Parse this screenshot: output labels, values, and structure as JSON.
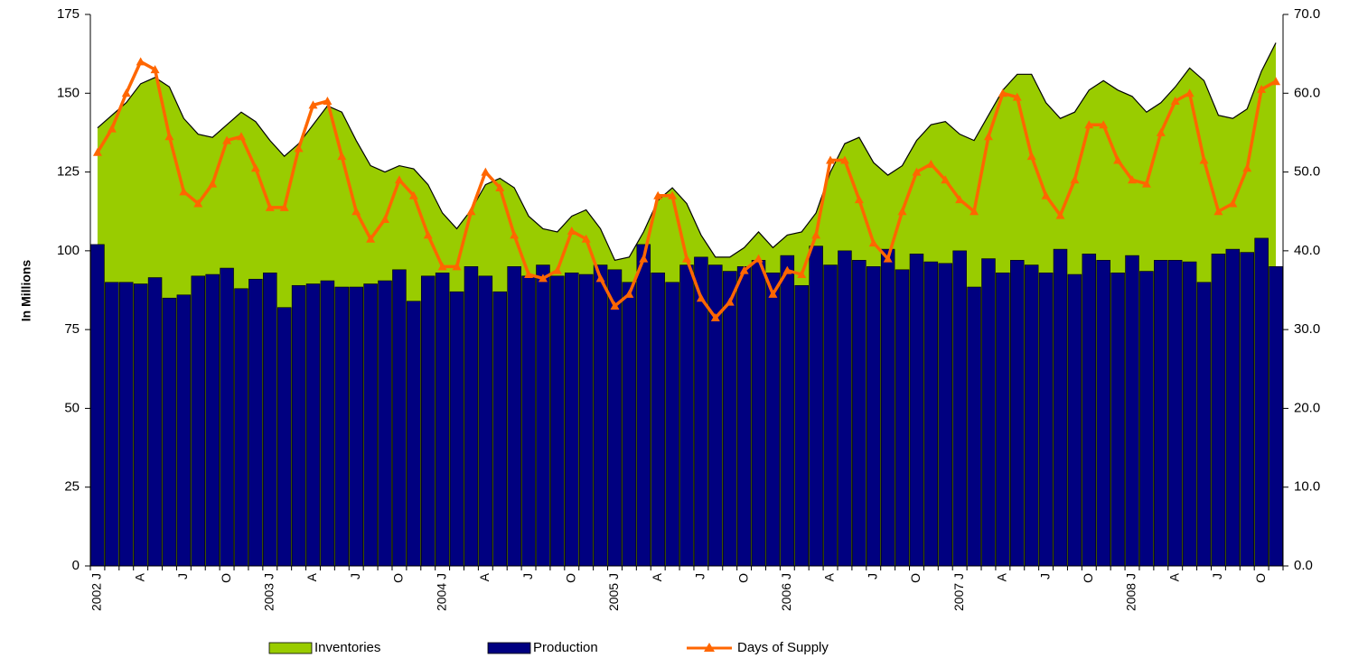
{
  "chart_data": {
    "type": "combo",
    "y_label": "In Millions",
    "categories": [
      "2002 J",
      null,
      null,
      "A",
      null,
      null,
      "J",
      null,
      null,
      "O",
      null,
      null,
      "2003 J",
      null,
      null,
      "A",
      null,
      null,
      "J",
      null,
      null,
      "O",
      null,
      null,
      "2004 J",
      null,
      null,
      "A",
      null,
      null,
      "J",
      null,
      null,
      "O",
      null,
      null,
      "2005 J",
      null,
      null,
      "A",
      null,
      null,
      "J",
      null,
      null,
      "O",
      null,
      null,
      "2006 J",
      null,
      null,
      "A",
      null,
      null,
      "J",
      null,
      null,
      "O",
      null,
      null,
      "2007 J",
      null,
      null,
      "A",
      null,
      null,
      "J",
      null,
      null,
      "O",
      null,
      null,
      "2008 J",
      null,
      null,
      "A",
      null,
      null,
      "J",
      null,
      null,
      "O",
      null
    ],
    "series": [
      {
        "name": "Inventories",
        "type": "area",
        "color": "#99cc00",
        "values": [
          139,
          143,
          147,
          153,
          155,
          152,
          142,
          137,
          136,
          140,
          144,
          141,
          135,
          130,
          134,
          140,
          146,
          144,
          135,
          127,
          125,
          127,
          126,
          121,
          112,
          107,
          113,
          121,
          123,
          120,
          111,
          107,
          106,
          111,
          113,
          107,
          97,
          98,
          106,
          116,
          120,
          115,
          105,
          98,
          98,
          101,
          106,
          101,
          105,
          106,
          112,
          125,
          134,
          136,
          128,
          124,
          127,
          135,
          140,
          141,
          137,
          135,
          143,
          151,
          156,
          156,
          147,
          142,
          144,
          151,
          154,
          151,
          149,
          144,
          147,
          152,
          158,
          154,
          143,
          142,
          145,
          157,
          166
        ]
      },
      {
        "name": "Production",
        "type": "bar",
        "color": "#000080",
        "values": [
          102,
          90,
          90,
          89.5,
          91.5,
          85,
          86,
          92,
          92.5,
          94.5,
          88,
          91,
          93,
          82,
          89,
          89.5,
          90.5,
          88.5,
          88.5,
          89.5,
          90.5,
          94,
          84,
          92,
          93,
          87,
          95,
          92,
          87,
          95,
          92,
          95.5,
          92,
          93,
          92.5,
          95.5,
          94,
          90,
          102,
          93,
          90,
          95.5,
          98,
          95.5,
          93.5,
          95,
          97,
          93,
          98.5,
          89,
          101.5,
          95.5,
          100,
          97,
          95,
          100.5,
          94,
          99,
          96.5,
          96,
          100,
          88.5,
          97.5,
          93,
          97,
          95.5,
          93,
          100.5,
          92.5,
          99,
          97,
          93,
          98.5,
          93.5,
          97,
          97,
          96.5,
          90,
          99,
          100.5,
          99.5,
          104,
          95
        ]
      },
      {
        "name": "Days of Supply",
        "type": "line",
        "axis": "y2",
        "color": "#ff6600",
        "values": [
          52.5,
          55.5,
          60,
          64,
          63,
          54.5,
          47.5,
          46,
          48.5,
          54,
          54.5,
          50.5,
          45.5,
          45.5,
          53,
          58.5,
          59,
          52,
          45,
          41.5,
          44,
          49,
          47,
          42,
          38,
          38,
          45,
          50,
          48,
          42,
          37,
          36.5,
          37.5,
          42.5,
          41.5,
          36.5,
          33,
          34.5,
          39,
          47,
          47,
          39,
          34,
          31.5,
          33.5,
          37.5,
          39,
          34.5,
          37.5,
          37,
          42,
          51.5,
          51.5,
          46.5,
          41,
          39,
          45,
          50,
          51,
          49,
          46.5,
          45,
          54.5,
          60,
          59.5,
          52,
          47,
          44.5,
          49,
          56,
          56,
          51.5,
          49,
          48.5,
          55,
          59,
          60,
          51.5,
          45,
          46,
          50.5,
          60.5,
          61.5
        ]
      }
    ],
    "ylim": [
      0,
      175
    ],
    "yticks": [
      0,
      25,
      50,
      75,
      100,
      125,
      150,
      175
    ],
    "y2lim": [
      0,
      70
    ],
    "y2ticks": [
      {
        "value": 0,
        "label": "0.0"
      },
      {
        "value": 10,
        "label": "10.0"
      },
      {
        "value": 20,
        "label": "20.0"
      },
      {
        "value": 30,
        "label": "30.0"
      },
      {
        "value": 40,
        "label": "40.0"
      },
      {
        "value": 50,
        "label": "50.0"
      },
      {
        "value": 60,
        "label": "60.0"
      },
      {
        "value": 70,
        "label": "70.0"
      }
    ],
    "legend": "bottom"
  }
}
